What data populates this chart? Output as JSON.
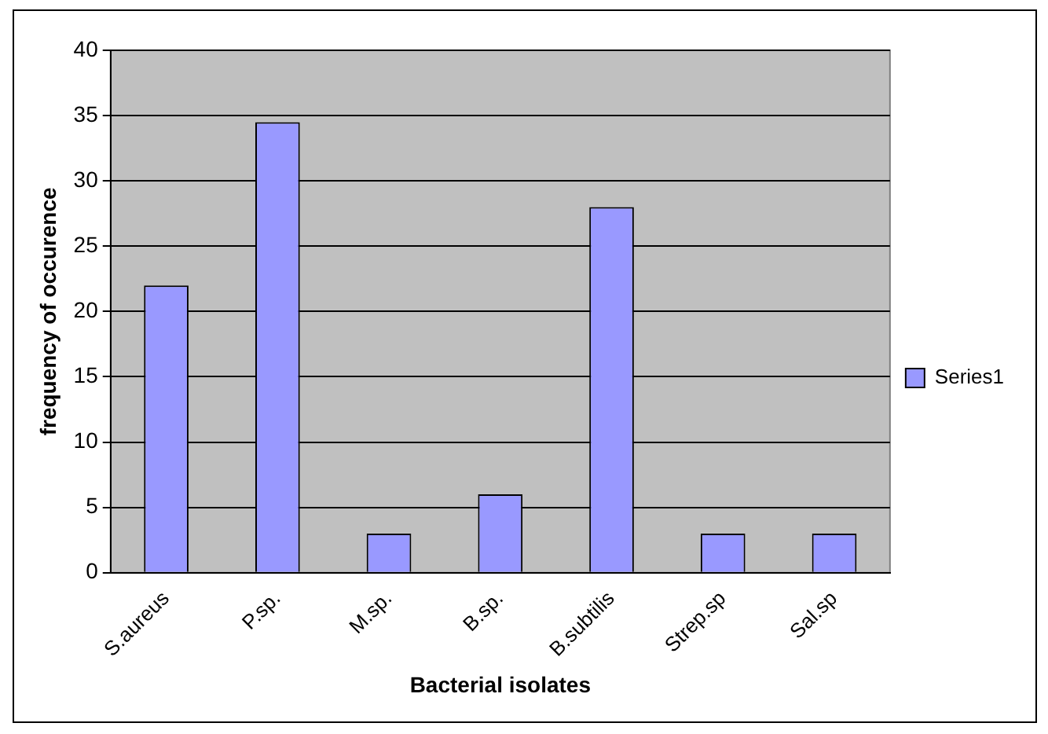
{
  "chart_data": {
    "type": "bar",
    "xlabel": "Bacterial isolates",
    "ylabel": "frequency of occurence",
    "categories": [
      "S.aureus",
      "P.sp.",
      "M.sp.",
      "B.sp.",
      "B.subtilis",
      "Strep.sp",
      "Sal.sp"
    ],
    "series": [
      {
        "name": "Series1",
        "color": "#9999ff",
        "values": [
          22,
          34.5,
          3,
          6,
          28,
          3,
          3
        ]
      }
    ],
    "ylim": [
      0,
      40
    ],
    "yticks": [
      0,
      5,
      10,
      15,
      20,
      25,
      30,
      35,
      40
    ],
    "grid": "y",
    "legend": "right"
  }
}
